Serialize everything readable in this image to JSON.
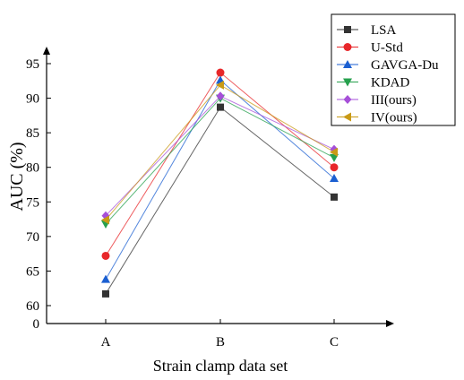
{
  "chart_data": {
    "type": "line",
    "title": "",
    "xlabel": "Strain clamp data set",
    "ylabel": "AUC (%)",
    "categories": [
      "A",
      "B",
      "C"
    ],
    "yticks": [
      {
        "value": 0,
        "label": "0"
      },
      {
        "value": 60,
        "label": "60"
      },
      {
        "value": 65,
        "label": "65"
      },
      {
        "value": 70,
        "label": "70"
      },
      {
        "value": 75,
        "label": "75"
      },
      {
        "value": 80,
        "label": "80"
      },
      {
        "value": 85,
        "label": "85"
      },
      {
        "value": 90,
        "label": "90"
      },
      {
        "value": 95,
        "label": "95"
      }
    ],
    "y_axis_break": {
      "below": 0,
      "above": 60
    },
    "ylim": [
      58,
      97
    ],
    "grid": false,
    "legend_position": "top-right",
    "series": [
      {
        "name": "LSA",
        "values": [
          61.7,
          88.7,
          75.7
        ],
        "color": "#333333",
        "marker": "square"
      },
      {
        "name": "U-Std",
        "values": [
          67.2,
          93.7,
          80.0
        ],
        "color": "#e8272a",
        "marker": "circle"
      },
      {
        "name": "GAVGA-Du",
        "values": [
          63.8,
          92.6,
          78.4
        ],
        "color": "#1b5fd1",
        "marker": "triangle-up"
      },
      {
        "name": "KDAD",
        "values": [
          71.8,
          90.0,
          81.4
        ],
        "color": "#26a04d",
        "marker": "triangle-down"
      },
      {
        "name": "III(ours)",
        "values": [
          73.0,
          90.3,
          82.6
        ],
        "color": "#a64fd8",
        "marker": "diamond"
      },
      {
        "name": "IV(ours)",
        "values": [
          72.4,
          91.9,
          82.2
        ],
        "color": "#c99a16",
        "marker": "triangle-left"
      }
    ]
  }
}
